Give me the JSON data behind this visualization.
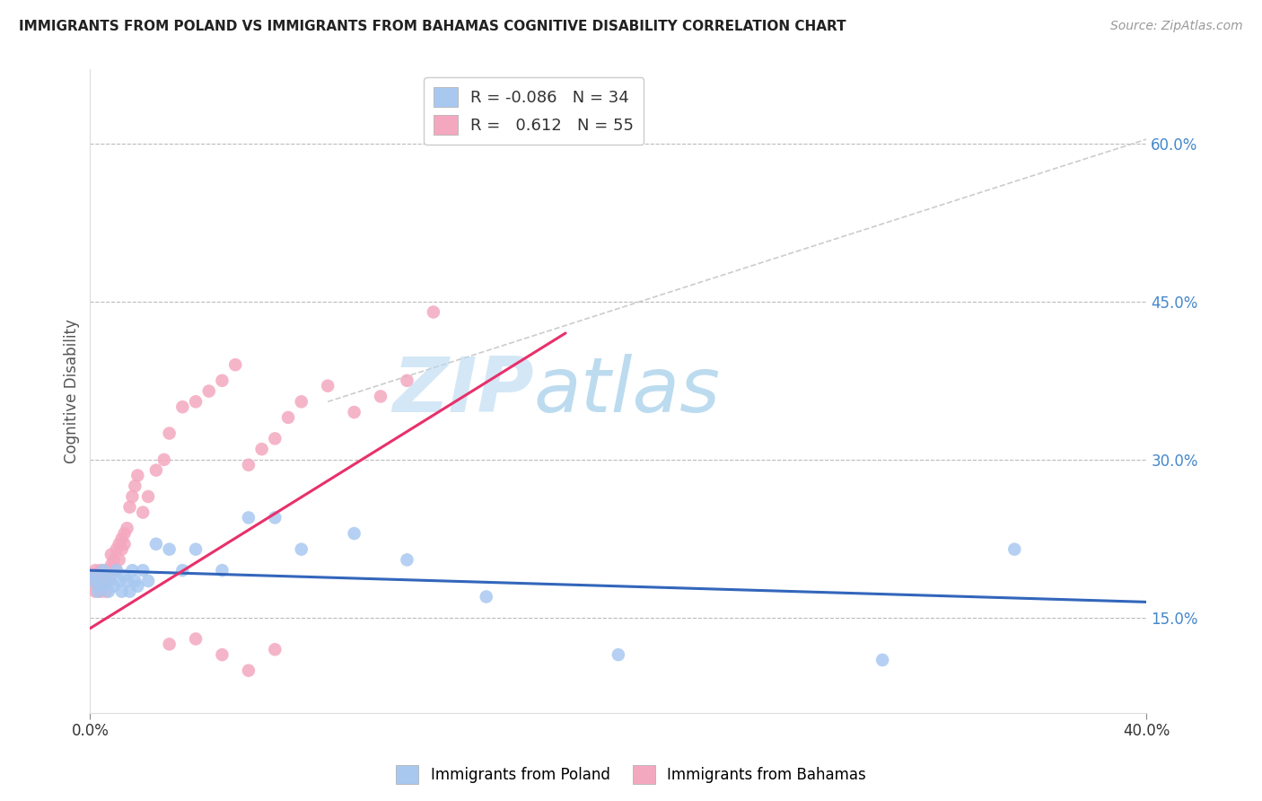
{
  "title": "IMMIGRANTS FROM POLAND VS IMMIGRANTS FROM BAHAMAS COGNITIVE DISABILITY CORRELATION CHART",
  "source": "Source: ZipAtlas.com",
  "ylabel": "Cognitive Disability",
  "right_yticks": [
    "15.0%",
    "30.0%",
    "45.0%",
    "60.0%"
  ],
  "right_ytick_vals": [
    0.15,
    0.3,
    0.45,
    0.6
  ],
  "xlim": [
    0.0,
    0.4
  ],
  "ylim": [
    0.06,
    0.67
  ],
  "legend_poland_R": "-0.086",
  "legend_poland_N": "34",
  "legend_bahamas_R": "0.612",
  "legend_bahamas_N": "55",
  "color_poland": "#a8c8f0",
  "color_bahamas": "#f4a8c0",
  "line_color_poland": "#3366bb",
  "line_color_bahamas": "#e8306a",
  "watermark_zip": "ZIP",
  "watermark_atlas": "atlas",
  "poland_x": [
    0.001,
    0.002,
    0.003,
    0.004,
    0.005,
    0.006,
    0.007,
    0.008,
    0.009,
    0.01,
    0.011,
    0.012,
    0.013,
    0.014,
    0.015,
    0.016,
    0.017,
    0.018,
    0.02,
    0.022,
    0.025,
    0.03,
    0.035,
    0.04,
    0.05,
    0.06,
    0.07,
    0.08,
    0.1,
    0.12,
    0.15,
    0.2,
    0.3,
    0.35
  ],
  "poland_y": [
    0.185,
    0.19,
    0.175,
    0.18,
    0.195,
    0.185,
    0.175,
    0.19,
    0.18,
    0.195,
    0.185,
    0.175,
    0.19,
    0.185,
    0.175,
    0.195,
    0.185,
    0.18,
    0.195,
    0.185,
    0.22,
    0.215,
    0.195,
    0.215,
    0.195,
    0.245,
    0.245,
    0.215,
    0.23,
    0.205,
    0.17,
    0.115,
    0.11,
    0.215
  ],
  "bahamas_x": [
    0.001,
    0.002,
    0.002,
    0.003,
    0.003,
    0.004,
    0.004,
    0.005,
    0.005,
    0.006,
    0.006,
    0.007,
    0.007,
    0.008,
    0.008,
    0.009,
    0.009,
    0.01,
    0.01,
    0.011,
    0.011,
    0.012,
    0.012,
    0.013,
    0.013,
    0.014,
    0.015,
    0.016,
    0.017,
    0.018,
    0.02,
    0.022,
    0.025,
    0.028,
    0.03,
    0.035,
    0.04,
    0.045,
    0.05,
    0.055,
    0.06,
    0.065,
    0.07,
    0.075,
    0.08,
    0.09,
    0.1,
    0.11,
    0.12,
    0.13,
    0.03,
    0.04,
    0.05,
    0.06,
    0.07
  ],
  "bahamas_y": [
    0.185,
    0.175,
    0.195,
    0.18,
    0.19,
    0.175,
    0.195,
    0.185,
    0.195,
    0.175,
    0.185,
    0.195,
    0.185,
    0.2,
    0.21,
    0.195,
    0.205,
    0.195,
    0.215,
    0.205,
    0.22,
    0.215,
    0.225,
    0.22,
    0.23,
    0.235,
    0.255,
    0.265,
    0.275,
    0.285,
    0.25,
    0.265,
    0.29,
    0.3,
    0.325,
    0.35,
    0.355,
    0.365,
    0.375,
    0.39,
    0.295,
    0.31,
    0.32,
    0.34,
    0.355,
    0.37,
    0.345,
    0.36,
    0.375,
    0.44,
    0.125,
    0.13,
    0.115,
    0.1,
    0.12
  ],
  "bahamas_line_x": [
    0.0,
    0.18
  ],
  "bahamas_line_y": [
    0.14,
    0.42
  ],
  "poland_line_x": [
    0.0,
    0.4
  ],
  "poland_line_y": [
    0.195,
    0.165
  ]
}
